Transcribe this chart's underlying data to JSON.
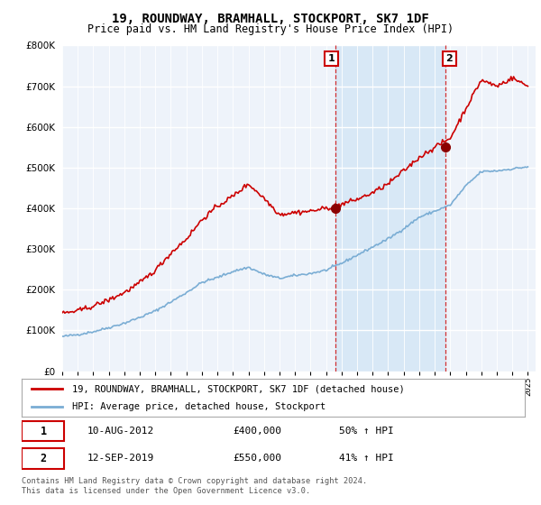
{
  "title": "19, ROUNDWAY, BRAMHALL, STOCKPORT, SK7 1DF",
  "subtitle": "Price paid vs. HM Land Registry's House Price Index (HPI)",
  "legend_line1": "19, ROUNDWAY, BRAMHALL, STOCKPORT, SK7 1DF (detached house)",
  "legend_line2": "HPI: Average price, detached house, Stockport",
  "annotation1_label": "1",
  "annotation1_date": "10-AUG-2012",
  "annotation1_price": "£400,000",
  "annotation1_hpi": "50% ↑ HPI",
  "annotation2_label": "2",
  "annotation2_date": "12-SEP-2019",
  "annotation2_price": "£550,000",
  "annotation2_hpi": "41% ↑ HPI",
  "footer": "Contains HM Land Registry data © Crown copyright and database right 2024.\nThis data is licensed under the Open Government Licence v3.0.",
  "hpi_color": "#7aadd4",
  "sale_color": "#cc0000",
  "background_color": "#eef3fa",
  "shade_color": "#d0e4f5",
  "ylim": [
    0,
    800000
  ],
  "yticks": [
    0,
    100000,
    200000,
    300000,
    400000,
    500000,
    600000,
    700000,
    800000
  ],
  "sale1_x": 2012.6,
  "sale1_y": 400000,
  "sale2_x": 2019.7,
  "sale2_y": 550000,
  "xlim_start": 1995.0,
  "xlim_end": 2025.5
}
